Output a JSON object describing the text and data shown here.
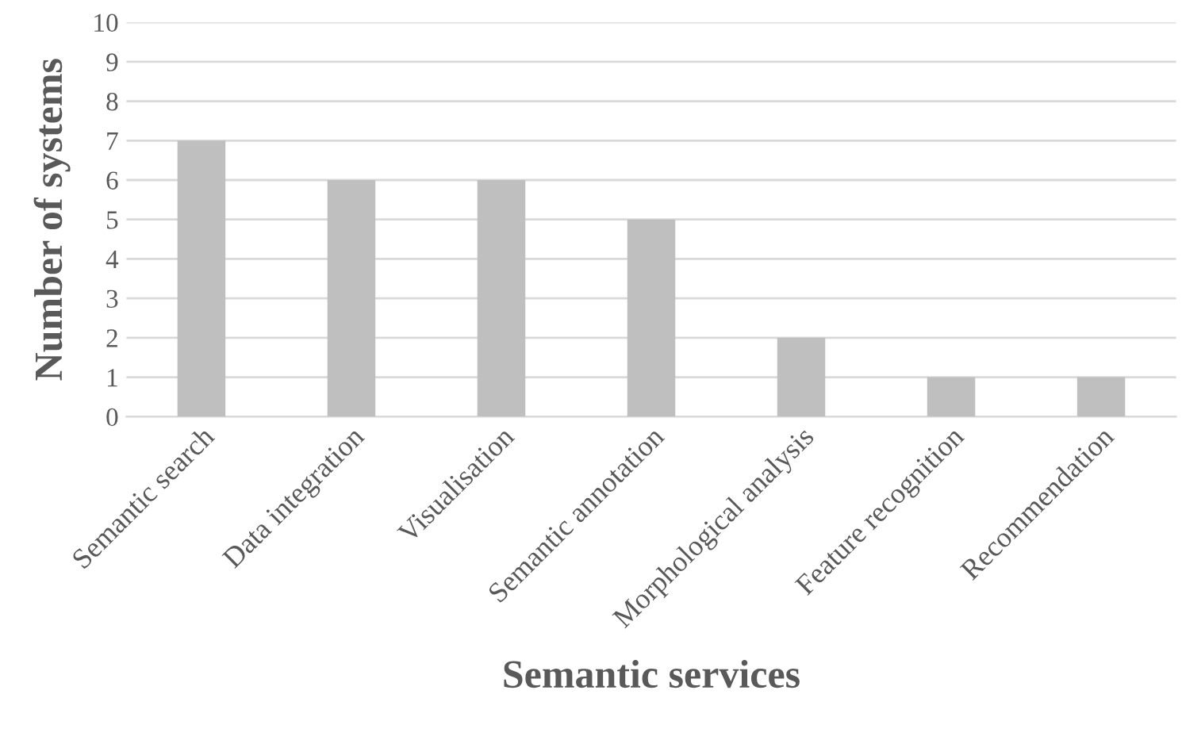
{
  "chart_data": {
    "type": "bar",
    "xlabel": "Semantic services",
    "ylabel": "Number of systems",
    "categories": [
      "Semantic search",
      "Data integration",
      "Visualisation",
      "Semantic annotation",
      "Morphological analysis",
      "Feature recognition",
      "Recommendation"
    ],
    "values": [
      7,
      6,
      6,
      5,
      2,
      1,
      1
    ],
    "color": "#bfbfbf",
    "ylim": [
      0,
      10
    ],
    "yticks": [
      0,
      1,
      2,
      3,
      4,
      5,
      6,
      7,
      8,
      9,
      10
    ],
    "grid": "y",
    "legend": false
  }
}
